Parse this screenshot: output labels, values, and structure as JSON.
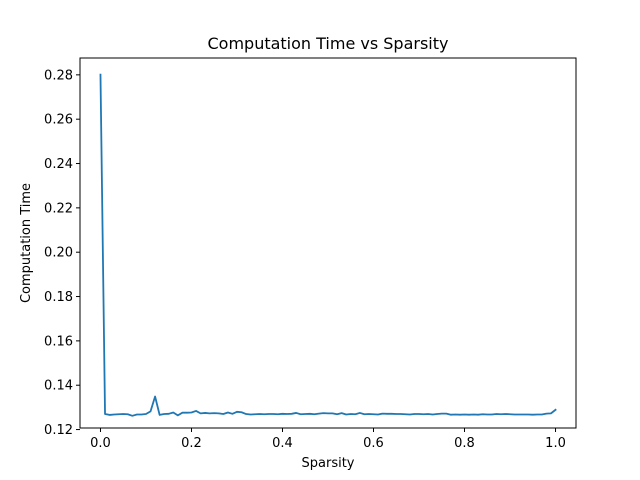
{
  "chart_data": {
    "type": "line",
    "title": "Computation Time vs Sparsity",
    "xlabel": "Sparsity",
    "ylabel": "Computation Time",
    "xlim": [
      -0.045,
      1.045
    ],
    "ylim": [
      0.1207,
      0.2876
    ],
    "xticks": [
      0.0,
      0.2,
      0.4,
      0.6,
      0.8,
      1.0
    ],
    "xtick_labels": [
      "0.0",
      "0.2",
      "0.4",
      "0.6",
      "0.8",
      "1.0"
    ],
    "yticks": [
      0.12,
      0.14,
      0.16,
      0.18,
      0.2,
      0.22,
      0.24,
      0.26,
      0.28
    ],
    "ytick_labels": [
      "0.12",
      "0.14",
      "0.16",
      "0.18",
      "0.20",
      "0.22",
      "0.24",
      "0.26",
      "0.28"
    ],
    "grid": false,
    "legend": null,
    "series": [
      {
        "color": "#1f77b4",
        "x": [
          0.0,
          0.01,
          0.02,
          0.03,
          0.04,
          0.05,
          0.06,
          0.07,
          0.08,
          0.09,
          0.1,
          0.11,
          0.12,
          0.13,
          0.14,
          0.15,
          0.16,
          0.17,
          0.18,
          0.19,
          0.2,
          0.21,
          0.22,
          0.23,
          0.24,
          0.25,
          0.26,
          0.27,
          0.28,
          0.29,
          0.3,
          0.31,
          0.32,
          0.33,
          0.34,
          0.35,
          0.36,
          0.37,
          0.38,
          0.39,
          0.4,
          0.41,
          0.42,
          0.43,
          0.44,
          0.45,
          0.46,
          0.47,
          0.48,
          0.49,
          0.5,
          0.51,
          0.52,
          0.53,
          0.54,
          0.55,
          0.56,
          0.57,
          0.58,
          0.59,
          0.6,
          0.61,
          0.62,
          0.63,
          0.64,
          0.65,
          0.66,
          0.67,
          0.68,
          0.69,
          0.7,
          0.71,
          0.72,
          0.73,
          0.74,
          0.75,
          0.76,
          0.77,
          0.78,
          0.79,
          0.8,
          0.81,
          0.82,
          0.83,
          0.84,
          0.85,
          0.86,
          0.87,
          0.88,
          0.89,
          0.9,
          0.91,
          0.92,
          0.93,
          0.94,
          0.95,
          0.96,
          0.97,
          0.98,
          0.99,
          1.0
        ],
        "y": [
          0.2801,
          0.127,
          0.1266,
          0.1268,
          0.1269,
          0.127,
          0.1269,
          0.1262,
          0.1268,
          0.1268,
          0.127,
          0.1282,
          0.1349,
          0.1266,
          0.127,
          0.1271,
          0.1277,
          0.1264,
          0.1276,
          0.1276,
          0.1277,
          0.1284,
          0.1273,
          0.1275,
          0.1273,
          0.1274,
          0.1273,
          0.127,
          0.1277,
          0.1271,
          0.128,
          0.1278,
          0.127,
          0.1268,
          0.1269,
          0.127,
          0.1269,
          0.127,
          0.127,
          0.1269,
          0.1271,
          0.127,
          0.1271,
          0.1275,
          0.1269,
          0.127,
          0.1271,
          0.1269,
          0.1272,
          0.1274,
          0.1273,
          0.1273,
          0.1269,
          0.1274,
          0.1268,
          0.127,
          0.1269,
          0.1275,
          0.1269,
          0.127,
          0.1269,
          0.1268,
          0.1272,
          0.1271,
          0.1271,
          0.127,
          0.127,
          0.1269,
          0.1268,
          0.127,
          0.127,
          0.1269,
          0.127,
          0.1268,
          0.127,
          0.1272,
          0.1272,
          0.1267,
          0.1268,
          0.1267,
          0.1268,
          0.1267,
          0.1268,
          0.1267,
          0.1269,
          0.1268,
          0.1268,
          0.127,
          0.1269,
          0.127,
          0.1269,
          0.1268,
          0.1268,
          0.1268,
          0.1268,
          0.1267,
          0.1268,
          0.1268,
          0.1272,
          0.1273,
          0.1289
        ]
      }
    ]
  }
}
